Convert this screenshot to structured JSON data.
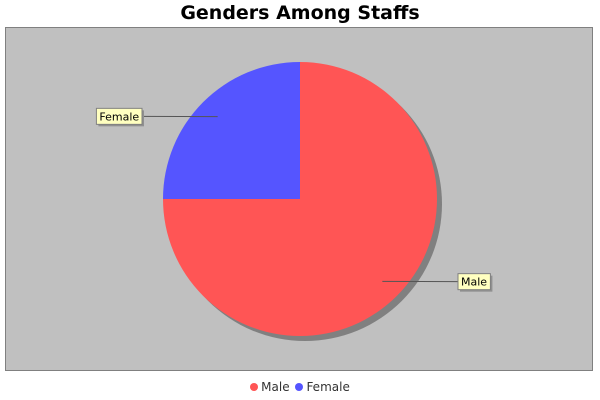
{
  "chart_data": {
    "type": "pie",
    "title": "Genders Among Staffs",
    "slices": [
      {
        "name": "Male",
        "value": 75,
        "color": "#ff5555"
      },
      {
        "name": "Female",
        "value": 25,
        "color": "#5555ff"
      }
    ],
    "plot_background": "#c0c0c0",
    "label_background": "#ffffc0",
    "legend_position": "bottom"
  }
}
